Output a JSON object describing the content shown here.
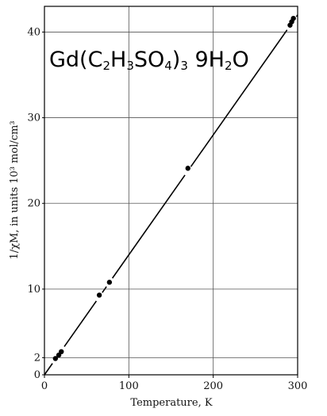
{
  "chart_data": {
    "type": "scatter",
    "title": {
      "parts": [
        {
          "text": "Gd(C",
          "sub": false
        },
        {
          "text": "2",
          "sub": true
        },
        {
          "text": "H",
          "sub": false
        },
        {
          "text": "3",
          "sub": true
        },
        {
          "text": "SO",
          "sub": false
        },
        {
          "text": "4",
          "sub": true
        },
        {
          "text": ")",
          "sub": false
        },
        {
          "text": "3",
          "sub": true
        },
        {
          "text": " 9H",
          "sub": false
        },
        {
          "text": "2",
          "sub": true
        },
        {
          "text": "O",
          "sub": false
        }
      ]
    },
    "xlabel": "Temperature, K",
    "ylabel": "1/χM, in units 10³ mol/cm³",
    "xlim": [
      0,
      300
    ],
    "ylim": [
      0,
      43
    ],
    "xticks": [
      0,
      100,
      200,
      300
    ],
    "yticks": [
      0,
      2,
      10,
      20,
      30,
      40
    ],
    "grid": true,
    "series": [
      {
        "x": [
          13,
          17,
          20,
          65,
          77,
          170,
          291,
          293,
          295
        ],
        "y": [
          1.9,
          2.3,
          2.7,
          9.3,
          10.8,
          24.1,
          40.8,
          41.2,
          41.6
        ]
      }
    ],
    "fit_line": {
      "x": [
        0,
        300
      ],
      "y": [
        0,
        42
      ]
    },
    "colors": {
      "ink": "#000000",
      "grid": "#555555"
    }
  }
}
